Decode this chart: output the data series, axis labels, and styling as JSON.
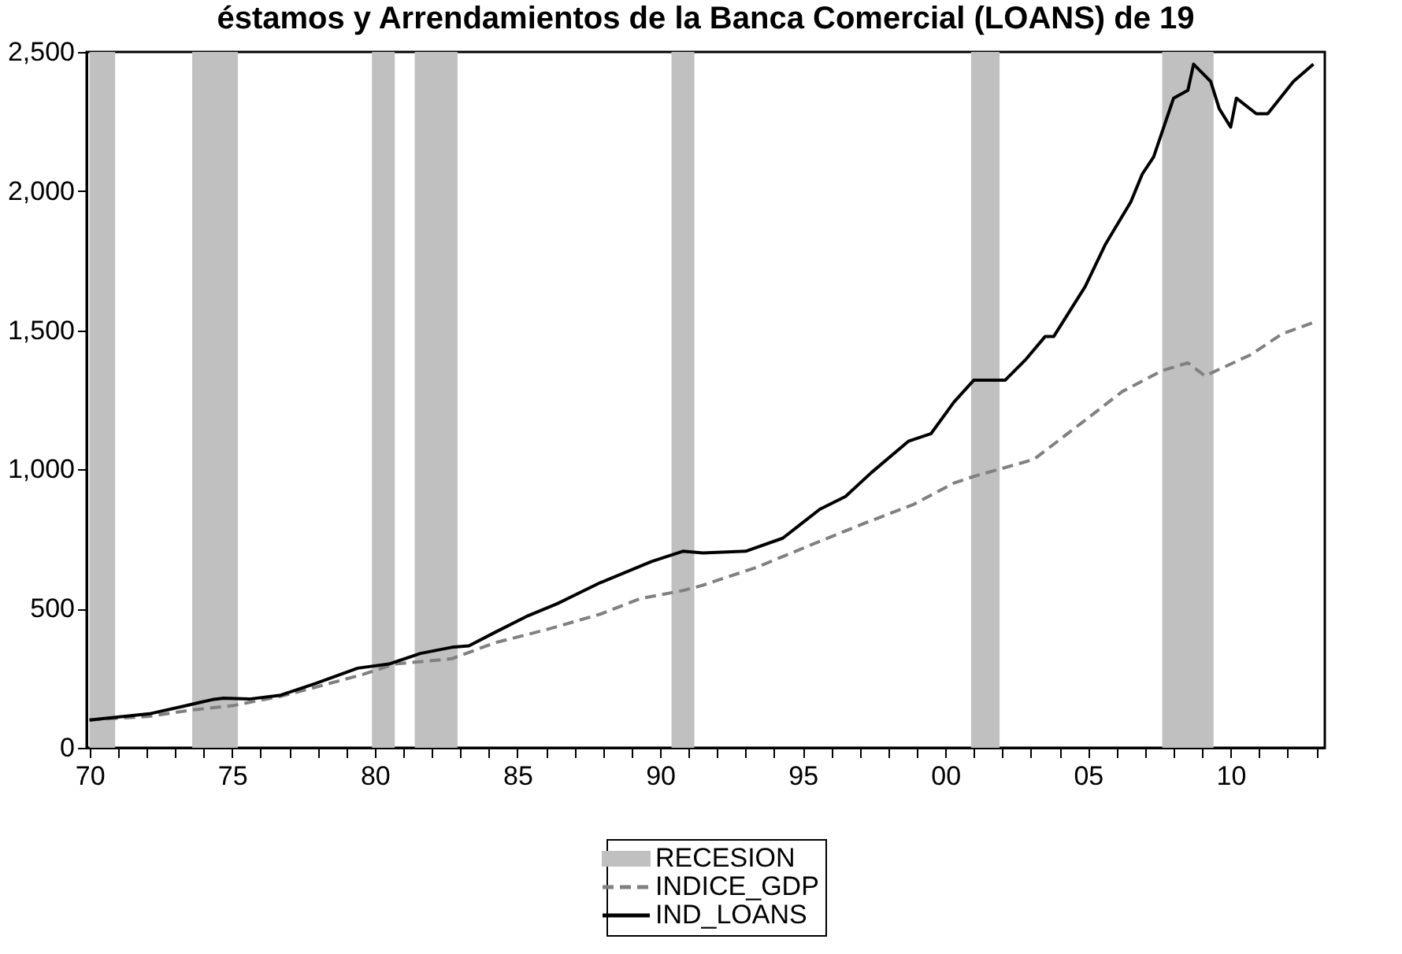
{
  "chart_data": {
    "type": "line",
    "title": "éstamos y Arrendamientos de la Banca Comercial (LOANS) de 19",
    "xlim": [
      1969.9,
      2013.3
    ],
    "xticks": [
      {
        "value": 1970,
        "label": "70"
      },
      {
        "value": 1971,
        "label": null
      },
      {
        "value": 1972,
        "label": null
      },
      {
        "value": 1973,
        "label": null
      },
      {
        "value": 1974,
        "label": null
      },
      {
        "value": 1975,
        "label": "75"
      },
      {
        "value": 1976,
        "label": null
      },
      {
        "value": 1977,
        "label": null
      },
      {
        "value": 1978,
        "label": null
      },
      {
        "value": 1979,
        "label": null
      },
      {
        "value": 1980,
        "label": "80"
      },
      {
        "value": 1981,
        "label": null
      },
      {
        "value": 1982,
        "label": null
      },
      {
        "value": 1983,
        "label": null
      },
      {
        "value": 1984,
        "label": null
      },
      {
        "value": 1985,
        "label": "85"
      },
      {
        "value": 1986,
        "label": null
      },
      {
        "value": 1987,
        "label": null
      },
      {
        "value": 1988,
        "label": null
      },
      {
        "value": 1989,
        "label": null
      },
      {
        "value": 1990,
        "label": "90"
      },
      {
        "value": 1991,
        "label": null
      },
      {
        "value": 1992,
        "label": null
      },
      {
        "value": 1993,
        "label": null
      },
      {
        "value": 1994,
        "label": null
      },
      {
        "value": 1995,
        "label": "95"
      },
      {
        "value": 1996,
        "label": null
      },
      {
        "value": 1997,
        "label": null
      },
      {
        "value": 1998,
        "label": null
      },
      {
        "value": 1999,
        "label": null
      },
      {
        "value": 2000,
        "label": "00"
      },
      {
        "value": 2001,
        "label": null
      },
      {
        "value": 2002,
        "label": null
      },
      {
        "value": 2003,
        "label": null
      },
      {
        "value": 2004,
        "label": null
      },
      {
        "value": 2005,
        "label": "05"
      },
      {
        "value": 2006,
        "label": null
      },
      {
        "value": 2007,
        "label": null
      },
      {
        "value": 2008,
        "label": null
      },
      {
        "value": 2009,
        "label": null
      },
      {
        "value": 2010,
        "label": "10"
      },
      {
        "value": 2011,
        "label": null
      },
      {
        "value": 2012,
        "label": null
      },
      {
        "value": 2013,
        "label": null
      }
    ],
    "ylim": [
      0,
      2500
    ],
    "yticks": [
      0,
      500,
      {
        "value": 1000,
        "label": "1,000"
      },
      {
        "value": 1500,
        "label": "1,500"
      },
      {
        "value": 2000,
        "label": "2,000"
      },
      {
        "value": 2500,
        "label": "2,500"
      }
    ],
    "grid": false,
    "legend": "bottom",
    "bands": [
      {
        "axis": "x",
        "from": 1970.0,
        "to": 1970.9,
        "label": "RECESION",
        "color": "#c0c0c0"
      },
      {
        "axis": "x",
        "from": 1973.6,
        "to": 1975.2,
        "color": "#c0c0c0"
      },
      {
        "axis": "x",
        "from": 1979.9,
        "to": 1980.7,
        "color": "#c0c0c0"
      },
      {
        "axis": "x",
        "from": 1981.4,
        "to": 1982.9,
        "color": "#c0c0c0"
      },
      {
        "axis": "x",
        "from": 1990.4,
        "to": 1991.2,
        "color": "#c0c0c0"
      },
      {
        "axis": "x",
        "from": 2000.9,
        "to": 2001.9,
        "color": "#c0c0c0"
      },
      {
        "axis": "x",
        "from": 2007.6,
        "to": 2009.4,
        "color": "#c0c0c0"
      }
    ],
    "series": [
      {
        "name": "INDICE_GDP",
        "color": "#808080",
        "line_style": "dashed",
        "x": [
          1970.0,
          1972.1,
          1973.6,
          1975.0,
          1976.7,
          1977.9,
          1979.6,
          1980.7,
          1982.7,
          1984.2,
          1986.0,
          1987.9,
          1989.3,
          1990.8,
          1991.5,
          1993.4,
          1995.2,
          1997.0,
          1998.9,
          2000.3,
          2001.0,
          2003.1,
          2004.9,
          2006.2,
          2007.6,
          2008.5,
          2009.1,
          2010.7,
          2011.8,
          2012.9
        ],
        "values": [
          100,
          113,
          136,
          151,
          185,
          217,
          264,
          301,
          320,
          377,
          424,
          480,
          536,
          565,
          584,
          649,
          725,
          800,
          875,
          951,
          975,
          1036,
          1177,
          1280,
          1355,
          1383,
          1336,
          1412,
          1487,
          1528
        ]
      },
      {
        "name": "IND_LOANS",
        "color": "#000000",
        "line_style": "solid",
        "x": [
          1970.0,
          1972.1,
          1973.2,
          1974.3,
          1974.7,
          1975.6,
          1976.7,
          1977.9,
          1979.4,
          1980.5,
          1981.6,
          1982.7,
          1983.3,
          1984.2,
          1985.3,
          1986.4,
          1987.9,
          1989.7,
          1990.8,
          1991.5,
          1993.0,
          1994.3,
          1995.6,
          1996.5,
          1997.4,
          1998.7,
          1999.5,
          2000.3,
          2001.0,
          2002.1,
          2002.8,
          2003.5,
          2003.8,
          2004.9,
          2005.6,
          2006.5,
          2006.9,
          2007.3,
          2008.0,
          2008.5,
          2008.7,
          2009.3,
          2009.6,
          2010.0,
          2010.2,
          2010.9,
          2011.3,
          2012.2,
          2012.9
        ],
        "values": [
          100,
          122,
          147,
          173,
          178,
          175,
          189,
          230,
          286,
          301,
          339,
          361,
          366,
          414,
          471,
          518,
          593,
          669,
          706,
          700,
          706,
          753,
          857,
          903,
          988,
          1101,
          1129,
          1242,
          1321,
          1321,
          1393,
          1478,
          1478,
          1657,
          1807,
          1961,
          2061,
          2123,
          2334,
          2362,
          2456,
          2394,
          2296,
          2230,
          2334,
          2278,
          2278,
          2394,
          2456
        ]
      }
    ]
  }
}
